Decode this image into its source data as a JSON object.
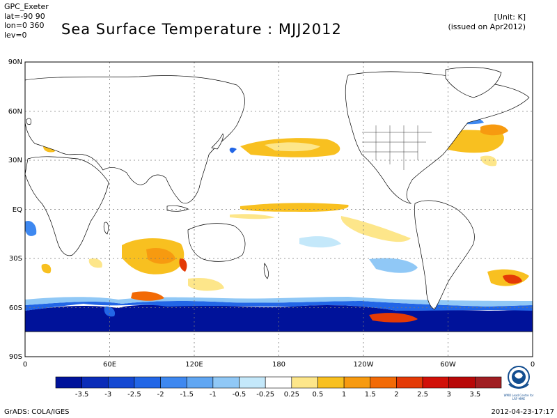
{
  "header": {
    "center_label": "GPC_Exeter",
    "lat_label": "lat=-90 90",
    "lon_label": "lon=0 360",
    "lev_label": "lev=0",
    "title": "Sea Surface Temperature : MJJ2012",
    "unit": "[Unit: K]",
    "issued": "(issued on Apr2012)"
  },
  "axes": {
    "lat_ticks": [
      "90N",
      "60N",
      "30N",
      "EQ",
      "30S",
      "60S",
      "90S"
    ],
    "lon_ticks": [
      "0",
      "60E",
      "120E",
      "180",
      "120W",
      "60W",
      "0"
    ]
  },
  "colorbar": {
    "labels": [
      "-3.5",
      "-3",
      "-2.5",
      "-2",
      "-1.5",
      "-1",
      "-0.5",
      "-0.25",
      "0.25",
      "0.5",
      "1",
      "1.5",
      "2",
      "2.5",
      "3",
      "3.5"
    ],
    "colors": [
      "#00129a",
      "#0a2cb8",
      "#1448d2",
      "#2266e6",
      "#3e88f0",
      "#60a6f2",
      "#90c8f6",
      "#c4e8fa",
      "#ffffff",
      "#fde68a",
      "#f8c020",
      "#f79a10",
      "#f26a06",
      "#e43a06",
      "#d11008",
      "#b80808",
      "#a01e22"
    ]
  },
  "footer": {
    "left": "GrADS: COLA/IGES",
    "right": "2012-04-23-17:17"
  },
  "logo": {
    "name": "wmo-logo",
    "text": "WMO Lead Centre for LRF-MME"
  }
}
